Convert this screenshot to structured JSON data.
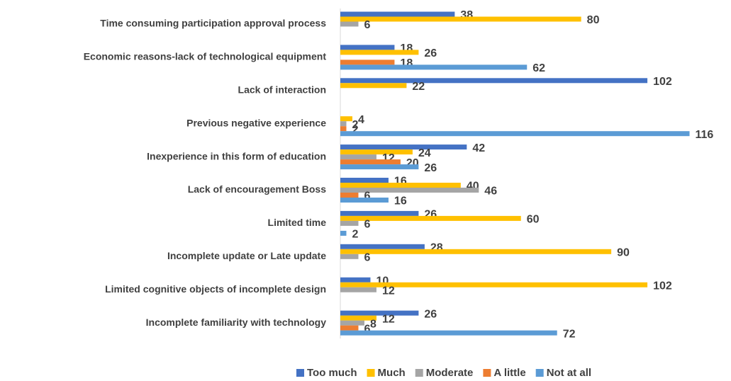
{
  "chart_data": {
    "type": "barh",
    "categories": [
      "Time consuming participation approval process",
      "Economic reasons-lack of technological equipment",
      "Lack of interaction",
      "Previous negative experience",
      "Inexperience in this form of education",
      "Lack of encouragement Boss",
      "Limited time",
      "Incomplete update or Late update",
      "Limited cognitive objects of incomplete design",
      "Incomplete familiarity with technology"
    ],
    "series": [
      {
        "name": "Too much",
        "color": "#4472c4",
        "values": [
          38,
          18,
          102,
          null,
          42,
          16,
          26,
          28,
          10,
          26
        ]
      },
      {
        "name": "Much",
        "color": "#ffc000",
        "values": [
          80,
          26,
          22,
          4,
          24,
          40,
          60,
          90,
          102,
          12
        ]
      },
      {
        "name": "Moderate",
        "color": "#a5a5a5",
        "values": [
          6,
          null,
          null,
          2,
          12,
          46,
          6,
          6,
          12,
          8
        ]
      },
      {
        "name": "A little",
        "color": "#ed7d31",
        "values": [
          null,
          18,
          null,
          2,
          20,
          6,
          null,
          null,
          null,
          6
        ]
      },
      {
        "name": "Not at all",
        "color": "#5b9bd5",
        "values": [
          null,
          62,
          null,
          116,
          26,
          16,
          2,
          null,
          null,
          72
        ]
      }
    ],
    "xlim": [
      0,
      122
    ],
    "legend": "bottom"
  }
}
